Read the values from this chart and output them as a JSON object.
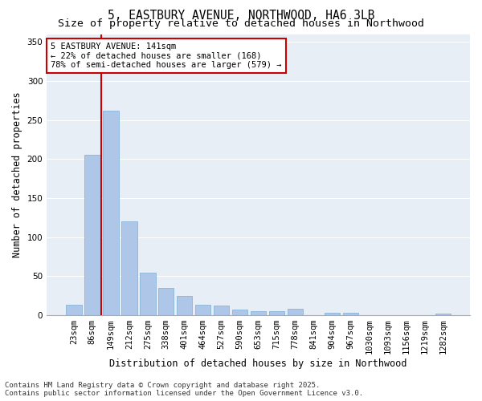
{
  "title_line1": "5, EASTBURY AVENUE, NORTHWOOD, HA6 3LB",
  "title_line2": "Size of property relative to detached houses in Northwood",
  "xlabel": "Distribution of detached houses by size in Northwood",
  "ylabel": "Number of detached properties",
  "categories": [
    "23sqm",
    "86sqm",
    "149sqm",
    "212sqm",
    "275sqm",
    "338sqm",
    "401sqm",
    "464sqm",
    "527sqm",
    "590sqm",
    "653sqm",
    "715sqm",
    "778sqm",
    "841sqm",
    "904sqm",
    "967sqm",
    "1030sqm",
    "1093sqm",
    "1156sqm",
    "1219sqm",
    "1282sqm"
  ],
  "values": [
    13,
    205,
    262,
    120,
    54,
    35,
    25,
    13,
    12,
    7,
    5,
    5,
    8,
    0,
    3,
    3,
    0,
    0,
    0,
    0,
    2
  ],
  "bar_color": "#aec6e8",
  "bar_edgecolor": "#7aadd4",
  "vline_color": "#cc0000",
  "vline_index": 2,
  "annotation_text": "5 EASTBURY AVENUE: 141sqm\n← 22% of detached houses are smaller (168)\n78% of semi-detached houses are larger (579) →",
  "annotation_bbox_edgecolor": "#cc0000",
  "ylim": [
    0,
    360
  ],
  "yticks": [
    0,
    50,
    100,
    150,
    200,
    250,
    300,
    350
  ],
  "plot_bg_color": "#e8eef5",
  "fig_bg_color": "#ffffff",
  "grid_color": "#ffffff",
  "footer_line1": "Contains HM Land Registry data © Crown copyright and database right 2025.",
  "footer_line2": "Contains public sector information licensed under the Open Government Licence v3.0.",
  "title_fontsize": 10.5,
  "subtitle_fontsize": 9.5,
  "ylabel_fontsize": 8.5,
  "xlabel_fontsize": 8.5,
  "tick_fontsize": 7.5,
  "annotation_fontsize": 7.5,
  "footer_fontsize": 6.5
}
